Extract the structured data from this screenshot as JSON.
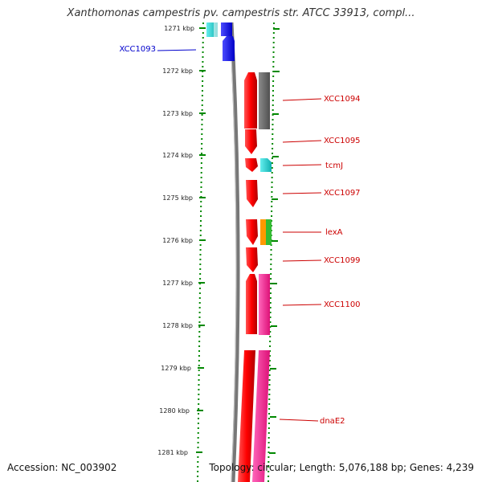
{
  "header": {
    "title": "Xanthomonas campestris pv. campestris str. ATCC 33913, compl..."
  },
  "footer": {
    "accession": "Accession: NC_003902",
    "topology": "Topology: circular; Length: 5,076,188 bp; Genes: 4,239"
  },
  "scale": {
    "labels": [
      "1271 kbp",
      "1272 kbp",
      "1273 kbp",
      "1274 kbp",
      "1275 kbp",
      "1276 kbp",
      "1277 kbp",
      "1278 kbp",
      "1279 kbp",
      "1280 kbp",
      "1281 kbp"
    ]
  },
  "genes": [
    {
      "name": "XCC1093",
      "color": "#0000cc"
    },
    {
      "name": "XCC1094",
      "color": "#cc0000"
    },
    {
      "name": "XCC1095",
      "color": "#cc0000"
    },
    {
      "name": "tcmJ",
      "color": "#cc0000"
    },
    {
      "name": "XCC1097",
      "color": "#cc0000"
    },
    {
      "name": "lexA",
      "color": "#cc0000"
    },
    {
      "name": "XCC1099",
      "color": "#cc0000"
    },
    {
      "name": "XCC1100",
      "color": "#cc0000"
    },
    {
      "name": "dnaE2",
      "color": "#cc0000"
    }
  ],
  "colors": {
    "red": "#ff1a1a",
    "gray": "#6e6e6e",
    "cyan": "#22cccc",
    "blue": "#1a1aff",
    "orange": "#ff9900",
    "green": "#33bb33",
    "pink": "#ff3399",
    "dots": "#008800"
  }
}
